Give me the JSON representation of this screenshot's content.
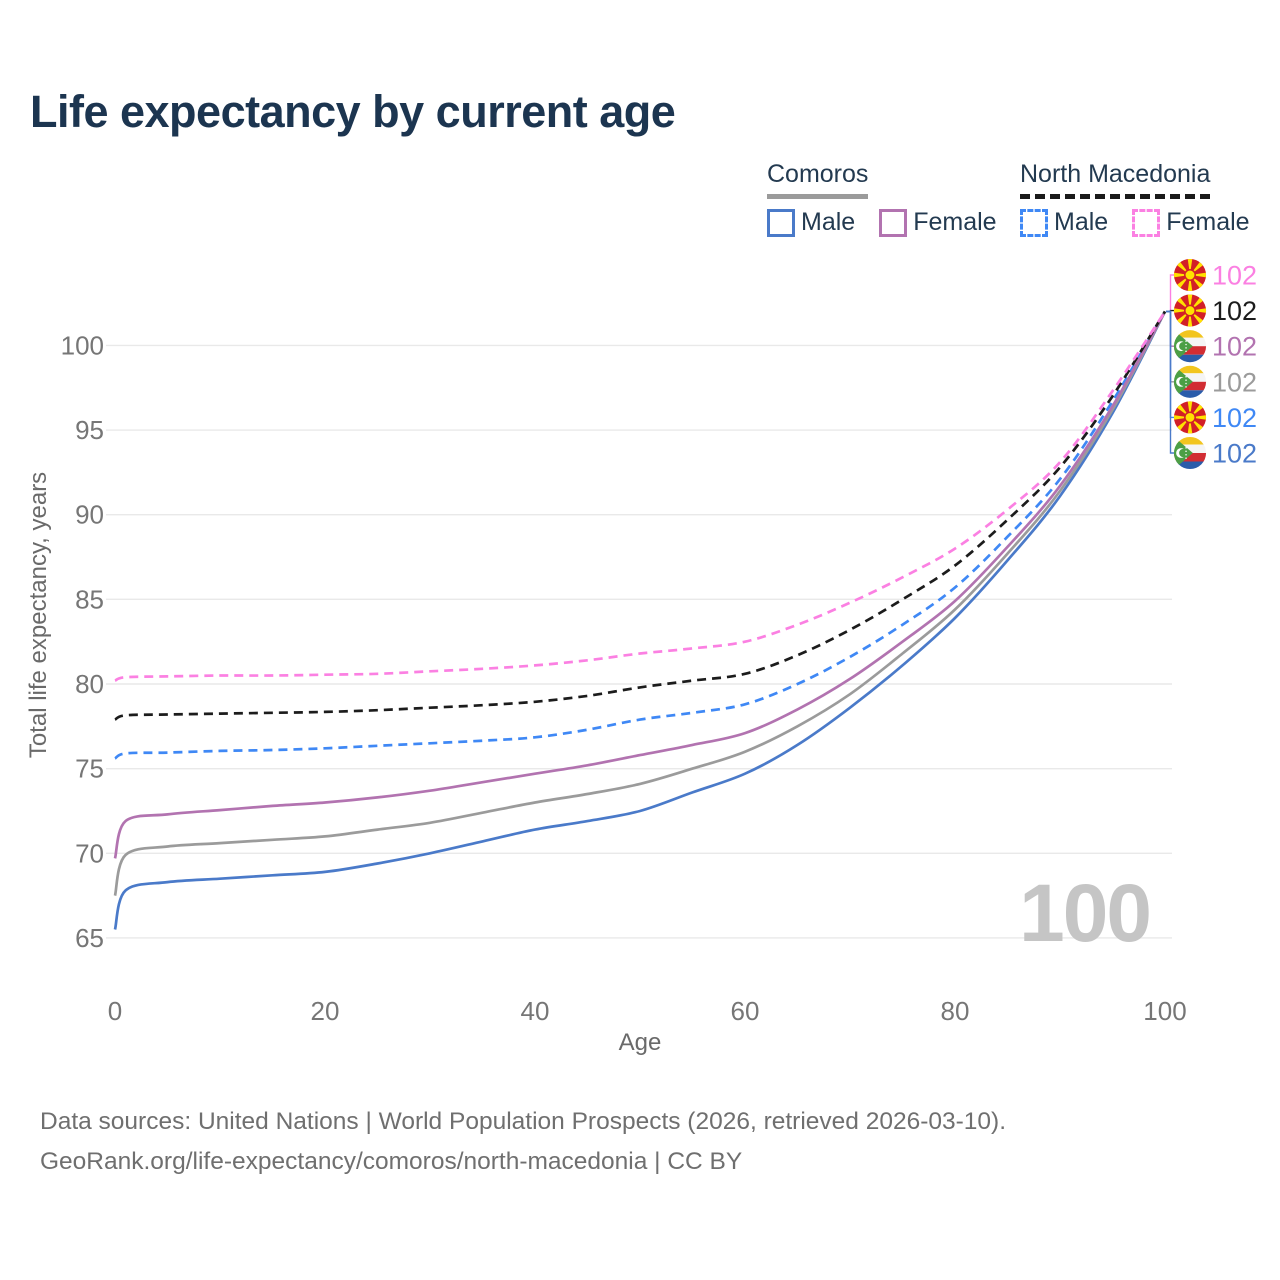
{
  "page": {
    "footer_line1": "Data sources: United Nations | World Population Prospects (2026, retrieved 2026-03-10).",
    "footer_line2": "GeoRank.org/life-expectancy/comoros/north-macedonia | CC BY"
  },
  "watermark": "100",
  "legend": {
    "groups": [
      {
        "name": "Comoros",
        "style": "solid",
        "underline_color": "#9b9b9b",
        "items": [
          {
            "label": "Male",
            "color": "#4a7ac9",
            "dashed": false
          },
          {
            "label": "Female",
            "color": "#b273b0",
            "dashed": false
          }
        ]
      },
      {
        "name": "North Macedonia",
        "style": "dashed",
        "underline_color": "#1a1a1a",
        "items": [
          {
            "label": "Male",
            "color": "#3f88f5",
            "dashed": true
          },
          {
            "label": "Female",
            "color": "#fb80e2",
            "dashed": true
          }
        ]
      }
    ]
  },
  "chart_data": {
    "type": "line",
    "title": "Life expectancy by current age",
    "xlabel": "Age",
    "ylabel": "Total life expectancy, years",
    "xlim": [
      0,
      100
    ],
    "ylim": [
      63,
      104.5
    ],
    "x_ticks": [
      0,
      20,
      40,
      60,
      80,
      100
    ],
    "y_ticks": [
      65,
      70,
      75,
      80,
      85,
      90,
      95,
      100
    ],
    "grid": "horizontal",
    "legend_position": "top-right",
    "x": [
      0,
      1,
      5,
      10,
      15,
      20,
      25,
      30,
      35,
      40,
      45,
      50,
      55,
      60,
      65,
      70,
      75,
      80,
      85,
      90,
      95,
      100
    ],
    "series": [
      {
        "name": "North Macedonia — Female",
        "country": "North Macedonia",
        "sex": "Female",
        "color": "#fb80e2",
        "dashed": true,
        "flag": "mk",
        "end_label": "102",
        "values": [
          80.2,
          80.4,
          80.45,
          80.5,
          80.5,
          80.55,
          80.6,
          80.75,
          80.9,
          81.1,
          81.4,
          81.8,
          82.1,
          82.5,
          83.5,
          84.8,
          86.3,
          88.0,
          90.3,
          93.1,
          97.3,
          102
        ]
      },
      {
        "name": "North Macedonia — Both sexes",
        "country": "North Macedonia",
        "sex": "Both sexes",
        "color": "#1c1c1c",
        "dashed": true,
        "flag": "mk",
        "end_label": "102",
        "values": [
          77.9,
          78.15,
          78.2,
          78.25,
          78.3,
          78.35,
          78.45,
          78.6,
          78.75,
          78.95,
          79.3,
          79.8,
          80.2,
          80.6,
          81.7,
          83.2,
          85.0,
          87.0,
          89.7,
          92.8,
          97.0,
          102
        ]
      },
      {
        "name": "Comoros — Female",
        "country": "Comoros",
        "sex": "Female",
        "color": "#b273b0",
        "dashed": false,
        "flag": "km",
        "end_label": "102",
        "values": [
          69.7,
          71.9,
          72.3,
          72.55,
          72.8,
          73.0,
          73.3,
          73.7,
          74.2,
          74.7,
          75.2,
          75.8,
          76.4,
          77.1,
          78.5,
          80.3,
          82.5,
          84.9,
          88.1,
          91.7,
          96.4,
          102
        ]
      },
      {
        "name": "Comoros — Both sexes",
        "country": "Comoros",
        "sex": "Both sexes",
        "color": "#9b9b9b",
        "dashed": false,
        "flag": "km",
        "end_label": "102",
        "values": [
          67.5,
          69.9,
          70.4,
          70.6,
          70.8,
          71.0,
          71.4,
          71.8,
          72.4,
          73.0,
          73.5,
          74.1,
          75.0,
          76.0,
          77.5,
          79.4,
          81.8,
          84.4,
          87.7,
          91.4,
          96.2,
          102
        ]
      },
      {
        "name": "North Macedonia — Male",
        "country": "North Macedonia",
        "sex": "Male",
        "color": "#3f88f5",
        "dashed": true,
        "flag": "mk",
        "end_label": "102",
        "values": [
          75.6,
          75.9,
          75.95,
          76.05,
          76.1,
          76.2,
          76.35,
          76.5,
          76.65,
          76.85,
          77.3,
          77.9,
          78.3,
          78.8,
          80.0,
          81.6,
          83.5,
          85.7,
          88.7,
          92.1,
          96.7,
          102
        ]
      },
      {
        "name": "Comoros — Male",
        "country": "Comoros",
        "sex": "Male",
        "color": "#4a7ac9",
        "dashed": false,
        "flag": "km",
        "end_label": "102",
        "values": [
          65.5,
          67.8,
          68.3,
          68.5,
          68.7,
          68.9,
          69.4,
          70.0,
          70.7,
          71.4,
          71.9,
          72.5,
          73.6,
          74.7,
          76.4,
          78.6,
          81.1,
          83.9,
          87.3,
          91.1,
          96.0,
          102
        ]
      }
    ]
  }
}
